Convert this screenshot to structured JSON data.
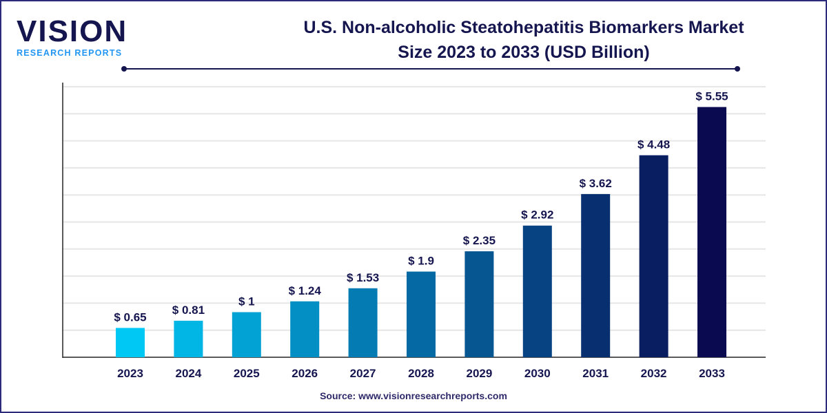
{
  "logo": {
    "main": "VISION",
    "sub": "RESEARCH REPORTS"
  },
  "title_line1": "U.S. Non-alcoholic Steatohepatitis Biomarkers Market",
  "title_line2": "Size 2023 to 2033 (USD Billion)",
  "source": "Source: www.visionresearchreports.com",
  "colors": {
    "start": "#00c8f5",
    "end": "#0a0a50",
    "text": "#15154f",
    "grid": "#e6e6e6"
  },
  "chart_data": {
    "type": "bar",
    "categories": [
      "2023",
      "2024",
      "2025",
      "2026",
      "2027",
      "2028",
      "2029",
      "2030",
      "2031",
      "2032",
      "2033"
    ],
    "values": [
      0.65,
      0.81,
      1,
      1.24,
      1.53,
      1.9,
      2.35,
      2.92,
      3.62,
      4.48,
      5.55
    ],
    "labels": [
      "$ 0.65",
      "$ 0.81",
      "$ 1",
      "$ 1.24",
      "$ 1.53",
      "$ 1.9",
      "$ 2.35",
      "$ 2.92",
      "$ 3.62",
      "$ 4.48",
      "$ 5.55"
    ],
    "ylim": [
      0,
      6
    ],
    "grid": true,
    "yticks_shown": false
  }
}
